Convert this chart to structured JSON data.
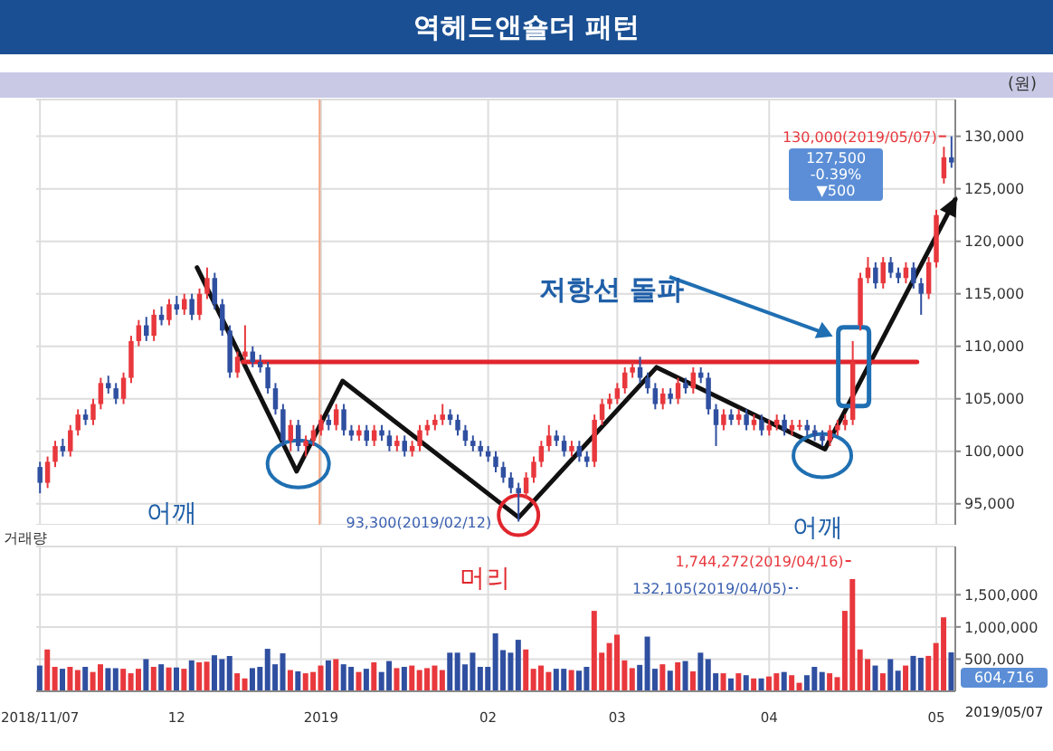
{
  "chart_data": [
    {
      "type": "candlestick",
      "title": "역헤드앤숄더 패턴",
      "ylabel": "(원)",
      "categories": [
        "2018/11/07",
        null,
        null,
        null,
        null,
        null,
        null,
        null,
        null,
        null,
        null,
        null,
        null,
        null,
        null,
        null,
        null,
        null,
        "12",
        null,
        null,
        null,
        null,
        null,
        null,
        null,
        null,
        null,
        null,
        null,
        null,
        null,
        null,
        null,
        null,
        null,
        null,
        "2019",
        null,
        null,
        null,
        null,
        null,
        null,
        null,
        null,
        null,
        null,
        null,
        null,
        null,
        null,
        null,
        null,
        null,
        null,
        null,
        null,
        null,
        "02",
        null,
        null,
        null,
        null,
        null,
        null,
        null,
        null,
        null,
        null,
        null,
        null,
        null,
        null,
        null,
        null,
        "03",
        null,
        null,
        null,
        null,
        null,
        null,
        null,
        null,
        null,
        null,
        null,
        null,
        null,
        null,
        null,
        null,
        null,
        null,
        null,
        "04",
        null,
        null,
        null,
        null,
        null,
        null,
        null,
        null,
        null,
        null,
        null,
        null,
        null,
        null,
        null,
        null,
        null,
        null,
        null,
        null,
        null,
        "05",
        null,
        null
      ],
      "ohlc": [
        [
          98500,
          99000,
          96000,
          97000
        ],
        [
          97000,
          99500,
          96500,
          99000
        ],
        [
          99000,
          101000,
          98500,
          100500
        ],
        [
          100500,
          101200,
          99500,
          100000
        ],
        [
          100000,
          102500,
          99500,
          102000
        ],
        [
          102000,
          104000,
          101500,
          103500
        ],
        [
          103500,
          104000,
          102500,
          103000
        ],
        [
          103000,
          105000,
          102500,
          104500
        ],
        [
          104500,
          107000,
          104000,
          106500
        ],
        [
          106500,
          107200,
          105500,
          106000
        ],
        [
          106000,
          106500,
          104500,
          105000
        ],
        [
          105000,
          107500,
          104500,
          107000
        ],
        [
          107000,
          111000,
          106500,
          110500
        ],
        [
          110500,
          112500,
          110000,
          112000
        ],
        [
          112000,
          112800,
          110500,
          111000
        ],
        [
          111000,
          113500,
          110500,
          113000
        ],
        [
          113000,
          113800,
          112000,
          112500
        ],
        [
          112500,
          114500,
          112000,
          114000
        ],
        [
          114000,
          114800,
          113000,
          113500
        ],
        [
          113500,
          115000,
          113000,
          114500
        ],
        [
          114500,
          115000,
          112500,
          113000
        ],
        [
          113000,
          115500,
          112500,
          115000
        ],
        [
          115000,
          117500,
          114500,
          116500
        ],
        [
          116500,
          117000,
          113500,
          114000
        ],
        [
          114000,
          114500,
          111000,
          111500
        ],
        [
          111500,
          112000,
          107000,
          107500
        ],
        [
          107500,
          109500,
          107000,
          109000
        ],
        [
          109000,
          112000,
          108500,
          109500
        ],
        [
          109500,
          110000,
          108000,
          108500
        ],
        [
          108500,
          109200,
          107500,
          108000
        ],
        [
          108000,
          108500,
          105500,
          106000
        ],
        [
          106000,
          106500,
          103500,
          104000
        ],
        [
          104000,
          104500,
          100500,
          101000
        ],
        [
          101000,
          103000,
          100000,
          102500
        ],
        [
          102500,
          103000,
          100000,
          100500
        ],
        [
          100500,
          101500,
          99500,
          101000
        ],
        [
          101000,
          102500,
          100500,
          102000
        ],
        [
          102000,
          103500,
          101500,
          103000
        ],
        [
          103000,
          103500,
          102000,
          102500
        ],
        [
          102500,
          104500,
          102000,
          104000
        ],
        [
          104000,
          104500,
          101500,
          102000
        ],
        [
          102000,
          102500,
          101000,
          101500
        ],
        [
          101500,
          102500,
          101000,
          102000
        ],
        [
          102000,
          102500,
          100500,
          101000
        ],
        [
          101000,
          102500,
          100500,
          102000
        ],
        [
          102000,
          102500,
          101000,
          101500
        ],
        [
          101500,
          102000,
          100000,
          100500
        ],
        [
          100500,
          101500,
          100000,
          101000
        ],
        [
          101000,
          101500,
          99500,
          100000
        ],
        [
          100000,
          101000,
          99500,
          100500
        ],
        [
          100500,
          102500,
          100000,
          102000
        ],
        [
          102000,
          103000,
          101500,
          102500
        ],
        [
          102500,
          103500,
          102000,
          103000
        ],
        [
          103000,
          104500,
          102500,
          103500
        ],
        [
          103500,
          104000,
          102500,
          103000
        ],
        [
          103000,
          103500,
          101500,
          102000
        ],
        [
          102000,
          102500,
          100500,
          101000
        ],
        [
          101000,
          101500,
          100000,
          100500
        ],
        [
          100500,
          101000,
          99500,
          100000
        ],
        [
          100000,
          100500,
          99000,
          99500
        ],
        [
          99500,
          100000,
          98000,
          98500
        ],
        [
          98500,
          99000,
          97000,
          97500
        ],
        [
          97500,
          98000,
          96000,
          96500
        ],
        [
          96500,
          97000,
          93300,
          96000
        ],
        [
          96000,
          98000,
          95500,
          97500
        ],
        [
          97500,
          99500,
          97000,
          99000
        ],
        [
          99000,
          101000,
          98500,
          100500
        ],
        [
          100500,
          102500,
          100000,
          101500
        ],
        [
          101500,
          102000,
          100500,
          101000
        ],
        [
          101000,
          101500,
          99500,
          100000
        ],
        [
          100000,
          101000,
          99500,
          100500
        ],
        [
          100500,
          101000,
          99000,
          99500
        ],
        [
          99500,
          100000,
          98500,
          99000
        ],
        [
          99000,
          103500,
          98500,
          103000
        ],
        [
          103000,
          105000,
          102500,
          104500
        ],
        [
          104500,
          105500,
          104000,
          105000
        ],
        [
          105000,
          106500,
          104500,
          106000
        ],
        [
          106000,
          108000,
          105500,
          107500
        ],
        [
          107500,
          108500,
          107000,
          108000
        ],
        [
          108000,
          109000,
          106500,
          107000
        ],
        [
          107000,
          107500,
          105500,
          106000
        ],
        [
          106000,
          106500,
          104000,
          104500
        ],
        [
          104500,
          106000,
          104000,
          105500
        ],
        [
          105500,
          106000,
          104500,
          105000
        ],
        [
          105000,
          107000,
          104500,
          106500
        ],
        [
          106500,
          107000,
          105500,
          106000
        ],
        [
          106000,
          108000,
          105500,
          107500
        ],
        [
          107500,
          108000,
          106500,
          107000
        ],
        [
          107000,
          107500,
          103500,
          104000
        ],
        [
          104000,
          104500,
          100500,
          102500
        ],
        [
          102500,
          104000,
          102000,
          103500
        ],
        [
          103500,
          104000,
          102500,
          103000
        ],
        [
          103000,
          104000,
          102500,
          103500
        ],
        [
          103500,
          104000,
          102000,
          102500
        ],
        [
          102500,
          103500,
          102000,
          103000
        ],
        [
          103000,
          103500,
          101500,
          102000
        ],
        [
          102000,
          103000,
          101500,
          102500
        ],
        [
          102500,
          103500,
          102000,
          103000
        ],
        [
          103000,
          103500,
          101500,
          102000
        ],
        [
          102000,
          103000,
          101500,
          102500
        ],
        [
          102500,
          103000,
          102000,
          102500
        ],
        [
          102500,
          103000,
          101500,
          102000
        ],
        [
          102000,
          102500,
          101000,
          101500
        ],
        [
          101500,
          102000,
          100500,
          101000
        ],
        [
          101000,
          102500,
          100500,
          102000
        ],
        [
          102000,
          103000,
          101500,
          102500
        ],
        [
          102500,
          103500,
          102000,
          103000
        ],
        [
          103000,
          110500,
          102500,
          108500
        ],
        [
          112000,
          117000,
          111500,
          116500
        ],
        [
          116500,
          118500,
          116000,
          117500
        ],
        [
          117500,
          118000,
          115500,
          116000
        ],
        [
          116000,
          118500,
          115500,
          118000
        ],
        [
          118000,
          118500,
          116500,
          117000
        ],
        [
          117000,
          117500,
          116000,
          116500
        ],
        [
          116500,
          118000,
          116000,
          117500
        ],
        [
          117500,
          118000,
          115500,
          116000
        ],
        [
          116000,
          116500,
          113000,
          115000
        ],
        [
          115000,
          118500,
          114500,
          118000
        ],
        [
          118000,
          123000,
          117500,
          122500
        ],
        [
          126000,
          129000,
          125500,
          128000
        ],
        [
          128000,
          130000,
          127000,
          127500
        ]
      ],
      "colors": [
        "#2f4fa0",
        "#e8383d",
        "#e8383d",
        "#2f4fa0",
        "#e8383d",
        "#e8383d",
        "#2f4fa0",
        "#e8383d",
        "#e8383d",
        "#2f4fa0",
        "#2f4fa0",
        "#e8383d",
        "#e8383d",
        "#e8383d",
        "#2f4fa0",
        "#e8383d",
        "#2f4fa0",
        "#e8383d",
        "#2f4fa0",
        "#e8383d",
        "#2f4fa0",
        "#e8383d",
        "#e8383d",
        "#2f4fa0",
        "#2f4fa0",
        "#2f4fa0",
        "#e8383d",
        "#e8383d",
        "#2f4fa0",
        "#2f4fa0",
        "#2f4fa0",
        "#2f4fa0",
        "#2f4fa0",
        "#e8383d",
        "#2f4fa0",
        "#e8383d",
        "#e8383d",
        "#e8383d",
        "#2f4fa0",
        "#e8383d",
        "#2f4fa0",
        "#2f4fa0",
        "#e8383d",
        "#2f4fa0",
        "#e8383d",
        "#2f4fa0",
        "#2f4fa0",
        "#e8383d",
        "#2f4fa0",
        "#e8383d",
        "#e8383d",
        "#e8383d",
        "#e8383d",
        "#e8383d",
        "#2f4fa0",
        "#2f4fa0",
        "#2f4fa0",
        "#2f4fa0",
        "#2f4fa0",
        "#2f4fa0",
        "#2f4fa0",
        "#2f4fa0",
        "#2f4fa0",
        "#2f4fa0",
        "#e8383d",
        "#e8383d",
        "#e8383d",
        "#e8383d",
        "#2f4fa0",
        "#2f4fa0",
        "#e8383d",
        "#2f4fa0",
        "#2f4fa0",
        "#e8383d",
        "#e8383d",
        "#e8383d",
        "#e8383d",
        "#e8383d",
        "#e8383d",
        "#2f4fa0",
        "#2f4fa0",
        "#2f4fa0",
        "#e8383d",
        "#2f4fa0",
        "#e8383d",
        "#2f4fa0",
        "#e8383d",
        "#2f4fa0",
        "#2f4fa0",
        "#2f4fa0",
        "#e8383d",
        "#2f4fa0",
        "#e8383d",
        "#2f4fa0",
        "#e8383d",
        "#2f4fa0",
        "#e8383d",
        "#e8383d",
        "#2f4fa0",
        "#e8383d",
        "#e8383d",
        "#2f4fa0",
        "#2f4fa0",
        "#2f4fa0",
        "#e8383d",
        "#e8383d",
        "#e8383d",
        "#e8383d",
        "#e8383d",
        "#e8383d",
        "#2f4fa0",
        "#e8383d",
        "#2f4fa0",
        "#2f4fa0",
        "#e8383d",
        "#2f4fa0",
        "#2f4fa0",
        "#e8383d",
        "#e8383d",
        "#e8383d",
        "#2f4fa0"
      ],
      "series": [
        {
          "type": "line",
          "color": "#111111",
          "values": [
            null,
            null,
            null,
            null,
            null,
            null,
            null,
            null,
            null,
            null,
            null,
            null,
            null,
            null,
            null,
            null,
            null,
            null,
            null,
            null,
            null,
            117500,
            null,
            null,
            null,
            null,
            null,
            null,
            null,
            null,
            null,
            null,
            null,
            null,
            98100,
            null,
            null,
            null,
            null,
            null,
            106700,
            null,
            null,
            null,
            null,
            null,
            null,
            null,
            null,
            null,
            null,
            null,
            null,
            null,
            null,
            null,
            null,
            null,
            null,
            null,
            null,
            null,
            null,
            93700,
            null,
            null,
            null,
            null,
            null,
            null,
            null,
            null,
            null,
            null,
            null,
            null,
            null,
            null,
            null,
            null,
            null,
            108000,
            null,
            null,
            null,
            null,
            null,
            null,
            null,
            null,
            null,
            null,
            null,
            null,
            null,
            null,
            null,
            null,
            null,
            null,
            null,
            null,
            null,
            100200,
            null,
            null,
            null,
            null,
            null,
            null,
            null,
            null,
            null,
            null,
            null,
            null,
            null,
            null,
            null,
            null,
            124000
          ]
        },
        {
          "type": "line",
          "color": "#e0262d",
          "values": [
            null,
            null,
            null,
            null,
            null,
            null,
            null,
            null,
            null,
            null,
            null,
            null,
            null,
            null,
            null,
            null,
            null,
            null,
            null,
            null,
            null,
            null,
            null,
            null,
            null,
            null,
            null,
            108500,
            null,
            null,
            null,
            null,
            null,
            null,
            null,
            null,
            null,
            null,
            null,
            null,
            null,
            null,
            null,
            null,
            null,
            null,
            null,
            null,
            null,
            null,
            null,
            null,
            null,
            null,
            null,
            null,
            null,
            null,
            null,
            null,
            null,
            null,
            null,
            null,
            null,
            null,
            null,
            null,
            null,
            null,
            null,
            null,
            null,
            null,
            null,
            null,
            null,
            null,
            null,
            null,
            null,
            null,
            null,
            null,
            null,
            null,
            null,
            null,
            null,
            null,
            null,
            null,
            null,
            null,
            null,
            null,
            null,
            null,
            null,
            null,
            null,
            null,
            null,
            null,
            null,
            null,
            null,
            null,
            null,
            null,
            null,
            null,
            null,
            null,
            null,
            108500,
            null,
            null,
            null,
            null,
            null
          ]
        }
      ],
      "ylim": [
        93000,
        133500
      ],
      "yticks": [
        {
          "value": 95000,
          "label": "95,000"
        },
        {
          "value": 100000,
          "label": "100,000"
        },
        {
          "value": 105000,
          "label": "105,000"
        },
        {
          "value": 110000,
          "label": "110,000"
        },
        {
          "value": 115000,
          "label": "115,000"
        },
        {
          "value": 120000,
          "label": "120,000"
        },
        {
          "value": 125000,
          "label": "125,000"
        },
        {
          "value": 130000,
          "label": "130,000"
        }
      ],
      "grid": true,
      "tick_labels": "y",
      "ref_lines": [
        {
          "axis": "x",
          "value": "2019",
          "color": "#f4a582"
        }
      ],
      "annotations": [
        "130,000(2019/05/07)",
        "93,300(2019/02/12)",
        "127,500",
        "-0.39%",
        "▼500",
        "저항선 돌파",
        "어깨",
        "머리",
        "어깨"
      ]
    },
    {
      "type": "bar",
      "title": "거래량",
      "categories": [
        "2018/11/07",
        null,
        null,
        null,
        null,
        null,
        null,
        null,
        null,
        null,
        null,
        null,
        null,
        null,
        null,
        null,
        null,
        null,
        "12",
        null,
        null,
        null,
        null,
        null,
        null,
        null,
        null,
        null,
        null,
        null,
        null,
        null,
        null,
        null,
        null,
        null,
        null,
        "2019",
        null,
        null,
        null,
        null,
        null,
        null,
        null,
        null,
        null,
        null,
        null,
        null,
        null,
        null,
        null,
        null,
        null,
        null,
        null,
        null,
        null,
        "02",
        null,
        null,
        null,
        null,
        null,
        null,
        null,
        null,
        null,
        null,
        null,
        null,
        null,
        null,
        null,
        null,
        "03",
        null,
        null,
        null,
        null,
        null,
        null,
        null,
        null,
        null,
        null,
        null,
        null,
        null,
        null,
        null,
        null,
        null,
        null,
        null,
        "04",
        null,
        null,
        null,
        null,
        null,
        null,
        null,
        null,
        null,
        null,
        null,
        null,
        null,
        null,
        null,
        null,
        null,
        null,
        null,
        null,
        null,
        "05",
        null,
        null
      ],
      "values": [
        400000,
        650000,
        380000,
        350000,
        380000,
        330000,
        380000,
        300000,
        420000,
        360000,
        360000,
        350000,
        280000,
        350000,
        500000,
        380000,
        420000,
        370000,
        370000,
        350000,
        480000,
        450000,
        460000,
        560000,
        500000,
        550000,
        280000,
        200000,
        360000,
        380000,
        660000,
        420000,
        590000,
        330000,
        310000,
        280000,
        300000,
        400000,
        480000,
        500000,
        420000,
        380000,
        300000,
        350000,
        450000,
        300000,
        470000,
        360000,
        380000,
        400000,
        330000,
        360000,
        400000,
        330000,
        600000,
        600000,
        420000,
        600000,
        380000,
        380000,
        900000,
        640000,
        600000,
        800000,
        650000,
        350000,
        400000,
        300000,
        350000,
        350000,
        330000,
        320000,
        380000,
        1250000,
        600000,
        750000,
        880000,
        480000,
        360000,
        410000,
        850000,
        350000,
        420000,
        320000,
        450000,
        470000,
        310000,
        600000,
        500000,
        280000,
        280000,
        200000,
        280000,
        250000,
        200000,
        200000,
        230000,
        280000,
        300000,
        250000,
        132105,
        250000,
        380000,
        300000,
        280000,
        220000,
        1250000,
        1744272,
        650000,
        500000,
        400000,
        280000,
        500000,
        320000,
        400000,
        550000,
        520000,
        550000,
        750000,
        1150000,
        604716
      ],
      "colors": [
        "#2f4fa0",
        "#e8383d",
        "#e8383d",
        "#2f4fa0",
        "#e8383d",
        "#e8383d",
        "#2f4fa0",
        "#e8383d",
        "#e8383d",
        "#2f4fa0",
        "#2f4fa0",
        "#e8383d",
        "#e8383d",
        "#e8383d",
        "#2f4fa0",
        "#e8383d",
        "#2f4fa0",
        "#e8383d",
        "#2f4fa0",
        "#e8383d",
        "#2f4fa0",
        "#e8383d",
        "#e8383d",
        "#2f4fa0",
        "#2f4fa0",
        "#2f4fa0",
        "#e8383d",
        "#e8383d",
        "#2f4fa0",
        "#2f4fa0",
        "#2f4fa0",
        "#2f4fa0",
        "#2f4fa0",
        "#e8383d",
        "#2f4fa0",
        "#e8383d",
        "#e8383d",
        "#e8383d",
        "#2f4fa0",
        "#e8383d",
        "#2f4fa0",
        "#2f4fa0",
        "#e8383d",
        "#2f4fa0",
        "#e8383d",
        "#2f4fa0",
        "#2f4fa0",
        "#e8383d",
        "#2f4fa0",
        "#e8383d",
        "#e8383d",
        "#e8383d",
        "#e8383d",
        "#e8383d",
        "#2f4fa0",
        "#2f4fa0",
        "#2f4fa0",
        "#2f4fa0",
        "#2f4fa0",
        "#2f4fa0",
        "#2f4fa0",
        "#2f4fa0",
        "#2f4fa0",
        "#2f4fa0",
        "#e8383d",
        "#e8383d",
        "#e8383d",
        "#e8383d",
        "#2f4fa0",
        "#2f4fa0",
        "#e8383d",
        "#2f4fa0",
        "#2f4fa0",
        "#e8383d",
        "#e8383d",
        "#e8383d",
        "#e8383d",
        "#e8383d",
        "#e8383d",
        "#2f4fa0",
        "#2f4fa0",
        "#2f4fa0",
        "#e8383d",
        "#2f4fa0",
        "#e8383d",
        "#2f4fa0",
        "#e8383d",
        "#2f4fa0",
        "#2f4fa0",
        "#2f4fa0",
        "#e8383d",
        "#2f4fa0",
        "#e8383d",
        "#2f4fa0",
        "#e8383d",
        "#2f4fa0",
        "#e8383d",
        "#e8383d",
        "#2f4fa0",
        "#e8383d",
        "#e8383d",
        "#2f4fa0",
        "#2f4fa0",
        "#2f4fa0",
        "#e8383d",
        "#e8383d",
        "#e8383d",
        "#e8383d",
        "#e8383d",
        "#e8383d",
        "#2f4fa0",
        "#e8383d",
        "#2f4fa0",
        "#2f4fa0",
        "#e8383d",
        "#2f4fa0",
        "#2f4fa0",
        "#e8383d",
        "#e8383d",
        "#e8383d",
        "#2f4fa0"
      ],
      "ylim": [
        0,
        2250000
      ],
      "yticks": [
        {
          "value": 500000,
          "label": "500,000"
        },
        {
          "value": 1000000,
          "label": "1,000,000"
        },
        {
          "value": 1500000,
          "label": "1,500,000"
        }
      ],
      "grid": true,
      "annotations": [
        "1,744,272(2019/04/16)",
        "132,105(2019/04/05)",
        "604,716",
        "2019/05/07"
      ]
    }
  ]
}
